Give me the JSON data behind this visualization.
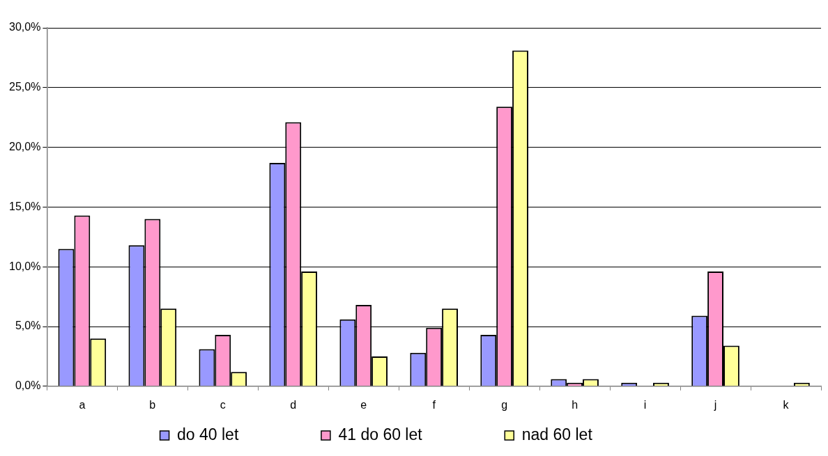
{
  "chart_data": {
    "type": "bar",
    "categories": [
      "a",
      "b",
      "c",
      "d",
      "e",
      "f",
      "g",
      "h",
      "i",
      "j",
      "k"
    ],
    "series": [
      {
        "name": "do 40 let",
        "color": "#9999ff",
        "values": [
          11.5,
          11.8,
          3.1,
          18.7,
          5.6,
          2.8,
          4.3,
          0.6,
          0.3,
          5.9,
          0
        ]
      },
      {
        "name": "41 do 60 let",
        "color": "#ff99cc",
        "values": [
          14.3,
          14.0,
          4.3,
          22.1,
          6.8,
          4.9,
          23.4,
          0.3,
          0,
          9.6,
          0
        ]
      },
      {
        "name": "nad 60 let",
        "color": "#ffff99",
        "values": [
          4.0,
          6.5,
          1.2,
          9.6,
          2.5,
          6.5,
          28.1,
          0.6,
          0.3,
          3.4,
          0.3
        ]
      }
    ],
    "ylim": [
      0,
      30
    ],
    "yticks": [
      {
        "value": 0,
        "label": "0,0%"
      },
      {
        "value": 5,
        "label": "5,0%"
      },
      {
        "value": 10,
        "label": "10,0%"
      },
      {
        "value": 15,
        "label": "15,0%"
      },
      {
        "value": 20,
        "label": "20,0%"
      },
      {
        "value": 25,
        "label": "25,0%"
      },
      {
        "value": 30,
        "label": "30,0%"
      }
    ],
    "grid": "y",
    "legend": "bottom"
  }
}
